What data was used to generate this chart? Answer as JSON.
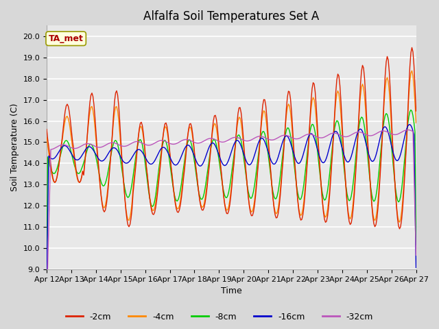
{
  "title": "Alfalfa Soil Temperatures Set A",
  "xlabel": "Time",
  "ylabel": "Soil Temperature (C)",
  "ylim": [
    9.0,
    20.5
  ],
  "yticks": [
    9.0,
    10.0,
    11.0,
    12.0,
    13.0,
    14.0,
    15.0,
    16.0,
    17.0,
    18.0,
    19.0,
    20.0
  ],
  "xtick_labels": [
    "Apr 12",
    "Apr 13",
    "Apr 14",
    "Apr 15",
    "Apr 16",
    "Apr 17",
    "Apr 18",
    "Apr 19",
    "Apr 20",
    "Apr 21",
    "Apr 22",
    "Apr 23",
    "Apr 24",
    "Apr 25",
    "Apr 26",
    "Apr 27"
  ],
  "annotation_text": "TA_met",
  "annotation_color": "#aa0000",
  "annotation_bg": "#ffffdd",
  "annotation_edge": "#999900",
  "line_colors": {
    "-2cm": "#dd2200",
    "-4cm": "#ff8800",
    "-8cm": "#00cc00",
    "-16cm": "#0000cc",
    "-32cm": "#bb55bb"
  },
  "legend_labels": [
    "-2cm",
    "-4cm",
    "-8cm",
    "-16cm",
    "-32cm"
  ],
  "background_color": "#d8d8d8",
  "plot_bg": "#e8e8e8",
  "grid_color": "#ffffff",
  "title_fontsize": 12,
  "label_fontsize": 9,
  "tick_fontsize": 8,
  "figwidth": 6.4,
  "figheight": 4.8,
  "dpi": 100
}
